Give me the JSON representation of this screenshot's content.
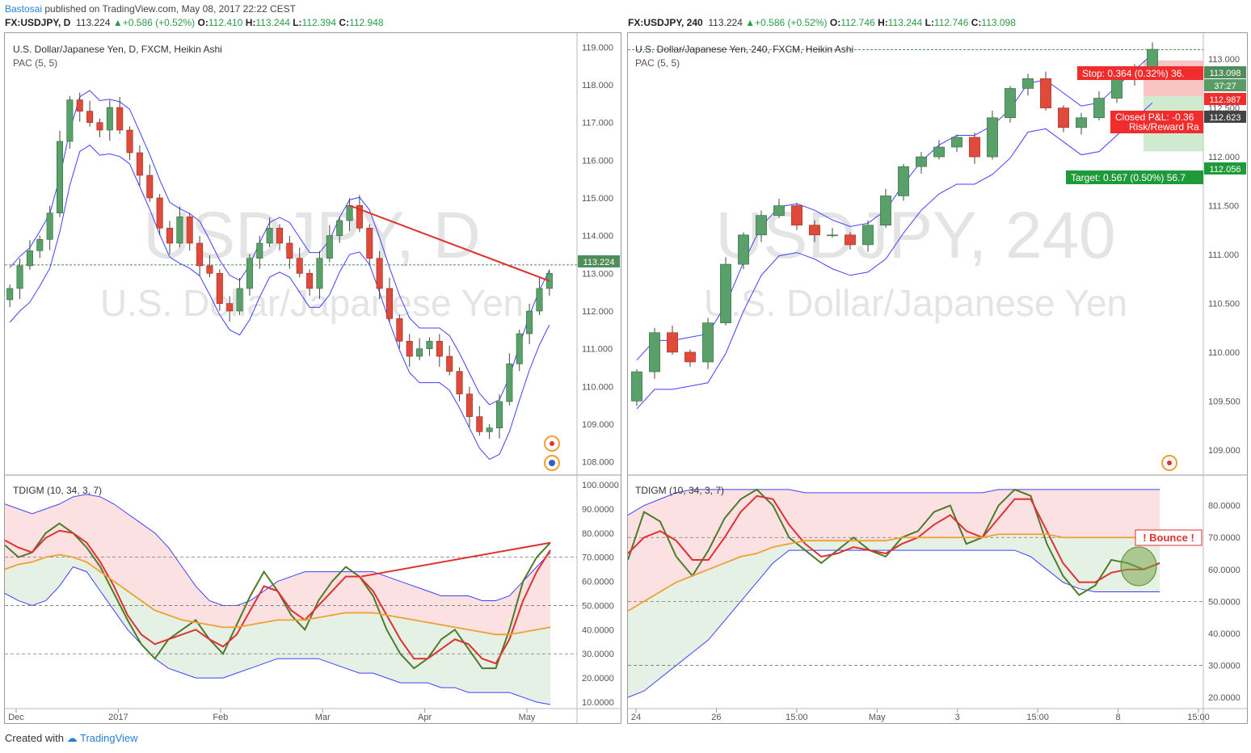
{
  "header": {
    "user": "Bastosai",
    "published": "published on TradingView.com, May 08, 2017 22:22 CEST"
  },
  "left": {
    "symbol_line": {
      "sym": "FX:USDJPY, D",
      "price": "113.224",
      "change": "+0.586 (+0.52%)",
      "o": "112.410",
      "h": "113.244",
      "l": "112.394",
      "c": "112.948"
    },
    "title": "U.S. Dollar/Japanese Yen, D, FXCM, Heikin Ashi",
    "pac": "PAC (5, 5)",
    "watermark_big": "USDJPY, D",
    "watermark_small": "U.S. Dollar/Japanese Yen",
    "osc_title": "TDIGM (10, 34, 3, 7)",
    "price_badge": "113.224"
  },
  "right": {
    "symbol_line": {
      "sym": "FX:USDJPY, 240",
      "price": "113.224",
      "change": "+0.586 (+0.52%)",
      "o": "112.746",
      "h": "113.244",
      "l": "112.746",
      "c": "113.098"
    },
    "title": "U.S. Dollar/Japanese Yen, 240, FXCM, Heikin Ashi",
    "pac": "PAC (5, 5)",
    "watermark_big": "USDJPY, 240",
    "watermark_small": "U.S. Dollar/Japanese Yen",
    "osc_title": "TDIGM (10, 34, 3, 7)",
    "stop_label": "Stop: 0.364 (0.32%) 36.",
    "closed_label": "Closed P&L: -0.36",
    "rr_label": "Risk/Reward Ra",
    "target_label": "Target: 0.567 (0.50%) 56.7",
    "bounce_label": "! Bounce !",
    "badges": {
      "price": "113.098",
      "timer": "37:27",
      "stop": "112.987",
      "entry": "112.623",
      "target": "112.056"
    }
  },
  "footer": {
    "created": "Created with",
    "brand": "TradingView"
  },
  "chart_data": [
    {
      "type": "candlestick",
      "title": "U.S. Dollar/Japanese Yen, D, FXCM, Heikin Ashi",
      "x_ticks": [
        "Dec",
        "2017",
        "Feb",
        "Mar",
        "Apr",
        "May"
      ],
      "y_ticks": [
        "119.000",
        "118.000",
        "117.000",
        "116.000",
        "115.000",
        "114.000",
        "113.000",
        "112.000",
        "111.000",
        "110.000",
        "109.000",
        "108.000"
      ],
      "ylim": [
        107.8,
        119.2
      ],
      "last_price": 113.224,
      "close_path": [
        112.6,
        113.2,
        113.6,
        113.9,
        114.6,
        116.5,
        117.6,
        117.3,
        117.0,
        116.8,
        117.4,
        116.8,
        116.2,
        115.6,
        115.0,
        114.2,
        113.8,
        114.5,
        113.8,
        113.2,
        113.0,
        112.2,
        112.0,
        112.6,
        113.4,
        113.8,
        114.2,
        113.8,
        113.4,
        113.0,
        112.6,
        113.4,
        114.0,
        114.4,
        114.8,
        114.2,
        113.4,
        112.6,
        111.8,
        111.2,
        110.8,
        111.0,
        111.2,
        110.8,
        110.4,
        109.8,
        109.2,
        108.8,
        108.9,
        109.6,
        110.6,
        111.4,
        112.0,
        112.6,
        113.0
      ],
      "trendline": {
        "from": 114.8,
        "to": 112.8
      },
      "line_color": "#e03030"
    },
    {
      "type": "candlestick",
      "title": "U.S. Dollar/Japanese Yen, 240, FXCM, Heikin Ashi",
      "x_ticks": [
        "24",
        "26",
        "15:00",
        "May",
        "3",
        "15:00",
        "8",
        "15:00"
      ],
      "y_ticks": [
        "113.000",
        "112.500",
        "112.000",
        "111.500",
        "111.000",
        "110.500",
        "110.000",
        "109.500",
        "109.000"
      ],
      "ylim": [
        108.8,
        113.2
      ],
      "close_path": [
        109.8,
        110.2,
        110.0,
        109.9,
        110.3,
        110.9,
        111.2,
        111.4,
        111.5,
        111.3,
        111.2,
        111.2,
        111.1,
        111.3,
        111.6,
        111.9,
        112.0,
        112.1,
        112.2,
        112.0,
        112.4,
        112.7,
        112.8,
        112.5,
        112.3,
        112.4,
        112.6,
        112.8,
        112.9,
        113.1
      ],
      "stop": 112.987,
      "entry": 112.623,
      "target": 112.056,
      "last_price": 113.098
    },
    {
      "type": "line",
      "title": "TDIGM (10, 34, 3, 7)",
      "y_ticks": [
        "100.0000",
        "90.0000",
        "80.0000",
        "70.0000",
        "60.0000",
        "50.0000",
        "40.0000",
        "30.0000",
        "20.0000",
        "10.0000"
      ],
      "ylim": [
        8,
        102
      ],
      "levels": [
        70,
        50,
        30
      ],
      "series": [
        {
          "values": [
            75,
            70,
            72,
            80,
            84,
            80,
            74,
            66,
            55,
            44,
            34,
            28,
            36,
            40,
            44,
            36,
            30,
            42,
            54,
            64,
            56,
            46,
            40,
            52,
            60,
            66,
            62,
            54,
            40,
            30,
            24,
            28,
            36,
            40,
            32,
            24,
            24,
            40,
            60,
            70,
            76
          ],
          "color": "#4f7a2a"
        },
        {
          "values": [
            77,
            74,
            72,
            78,
            81,
            80,
            76,
            68,
            58,
            46,
            38,
            34,
            36,
            38,
            40,
            36,
            33,
            38,
            48,
            58,
            56,
            48,
            44,
            50,
            56,
            62,
            62,
            56,
            46,
            36,
            28,
            28,
            32,
            36,
            34,
            28,
            26,
            36,
            52,
            64,
            73
          ],
          "color": "#e03030"
        },
        {
          "values": [
            65,
            67,
            68,
            70,
            71,
            70,
            68,
            64,
            60,
            56,
            52,
            48,
            46,
            44,
            43,
            42,
            41,
            41,
            42,
            43,
            44,
            44,
            44,
            45,
            46,
            47,
            47,
            47,
            46,
            45,
            44,
            43,
            42,
            41,
            40,
            39,
            38,
            38,
            39,
            40,
            41
          ],
          "color": "#f0a030"
        }
      ],
      "band_upper": [
        92,
        90,
        88,
        90,
        92,
        95,
        96,
        95,
        92,
        88,
        84,
        80,
        74,
        66,
        58,
        52,
        50,
        50,
        52,
        56,
        60,
        62,
        64,
        64,
        64,
        64,
        64,
        64,
        62,
        60,
        58,
        56,
        54,
        54,
        54,
        52,
        52,
        54,
        60,
        66,
        72
      ],
      "band_lower": [
        55,
        52,
        50,
        52,
        58,
        66,
        64,
        56,
        48,
        40,
        34,
        28,
        24,
        22,
        20,
        20,
        20,
        22,
        24,
        26,
        28,
        28,
        28,
        28,
        26,
        24,
        22,
        22,
        20,
        18,
        18,
        18,
        16,
        16,
        14,
        14,
        14,
        14,
        12,
        10,
        9
      ],
      "trendline": {
        "from": 62,
        "to": 76
      }
    },
    {
      "type": "line",
      "title": "TDIGM (10, 34, 3, 7)",
      "y_ticks": [
        "80.0000",
        "70.0000",
        "60.0000",
        "50.0000",
        "40.0000",
        "30.0000",
        "20.0000"
      ],
      "ylim": [
        17,
        88
      ],
      "levels": [
        70,
        50,
        30
      ],
      "annotation": "! Bounce !",
      "series": [
        {
          "values": [
            63,
            78,
            75,
            64,
            58,
            66,
            76,
            82,
            85,
            80,
            70,
            66,
            62,
            66,
            70,
            66,
            64,
            70,
            72,
            78,
            80,
            68,
            70,
            80,
            85,
            83,
            68,
            58,
            52,
            55,
            63,
            62,
            60,
            62
          ],
          "color": "#4f7a2a"
        },
        {
          "values": [
            65,
            70,
            72,
            69,
            63,
            63,
            70,
            78,
            83,
            82,
            74,
            68,
            64,
            65,
            67,
            66,
            65,
            68,
            70,
            74,
            77,
            72,
            70,
            76,
            82,
            82,
            72,
            62,
            56,
            56,
            59,
            60,
            60,
            62
          ],
          "color": "#e03030"
        },
        {
          "values": [
            47,
            50,
            53,
            56,
            58,
            60,
            62,
            64,
            65,
            67,
            68,
            69,
            69,
            69,
            69,
            69,
            69,
            70,
            70,
            70,
            70,
            70,
            70,
            71,
            71,
            71,
            71,
            70,
            70,
            70,
            70,
            70,
            70,
            70
          ],
          "color": "#f0a030"
        }
      ],
      "band_upper": [
        77,
        80,
        82,
        84,
        85,
        85,
        85,
        85,
        85,
        85,
        85,
        84,
        84,
        84,
        84,
        84,
        84,
        84,
        84,
        84,
        84,
        84,
        84,
        85,
        85,
        85,
        85,
        85,
        85,
        85,
        85,
        85,
        85,
        85
      ],
      "band_lower": [
        20,
        22,
        26,
        30,
        34,
        38,
        44,
        50,
        56,
        62,
        66,
        66,
        66,
        66,
        66,
        66,
        66,
        66,
        66,
        66,
        66,
        66,
        66,
        66,
        66,
        64,
        60,
        56,
        54,
        53,
        53,
        53,
        53,
        53
      ]
    }
  ]
}
